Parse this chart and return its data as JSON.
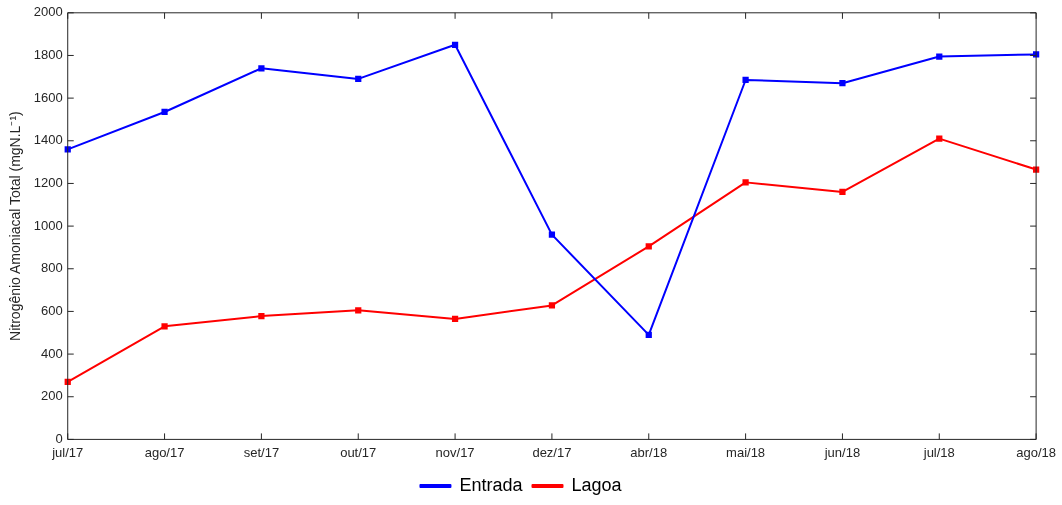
{
  "chart_data": {
    "type": "line",
    "ylabel": "Nitrogênio Amoniacal Total (mgN.L⁻¹)",
    "categories": [
      "jul/17",
      "ago/17",
      "set/17",
      "out/17",
      "nov/17",
      "dez/17",
      "abr/18",
      "mai/18",
      "jun/18",
      "jul/18",
      "ago/18"
    ],
    "series": [
      {
        "name": "Entrada",
        "color": "#0000ff",
        "values": [
          1360,
          1535,
          1740,
          1690,
          1850,
          960,
          490,
          1685,
          1670,
          1795,
          1805
        ]
      },
      {
        "name": "Lagoa",
        "color": "#ff0000",
        "values": [
          270,
          530,
          578,
          605,
          565,
          628,
          905,
          1205,
          1160,
          1410,
          1265
        ]
      }
    ],
    "ylim": [
      0,
      2000
    ],
    "yticks": [
      0,
      200,
      400,
      600,
      800,
      1000,
      1200,
      1400,
      1600,
      1800,
      2000
    ],
    "marker": "square",
    "line_style": "solid",
    "legend": "bottom",
    "grid": false
  }
}
